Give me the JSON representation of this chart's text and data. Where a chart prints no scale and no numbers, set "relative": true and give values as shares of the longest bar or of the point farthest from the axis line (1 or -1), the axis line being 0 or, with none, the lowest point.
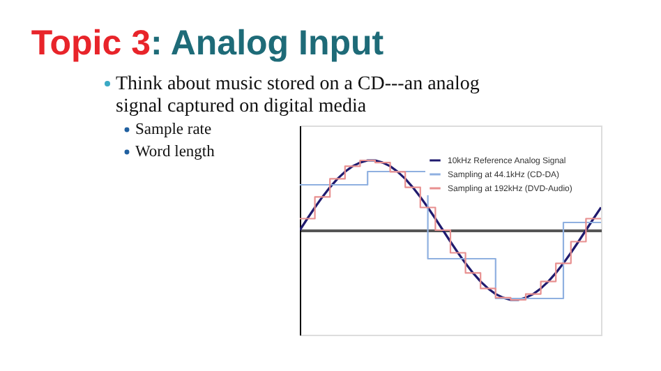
{
  "chart_data": {
    "type": "line",
    "relative": true,
    "title": "Topic 3: Analog Input",
    "annotations": [
      "Think about music stored on a CD---an analog signal captured on digital media",
      "Sample rate",
      "Word length"
    ],
    "categories": [
      null,
      null,
      null,
      null,
      null,
      null,
      null,
      null,
      null,
      null,
      null,
      null,
      null,
      null,
      null,
      null,
      null,
      null,
      null,
      null,
      null,
      null,
      null,
      null,
      null,
      null,
      null,
      null,
      null,
      null,
      null,
      null,
      null,
      null,
      null,
      null,
      null,
      null,
      null,
      null,
      null
    ],
    "tick_labels": false,
    "legend": "top right",
    "series": [
      {
        "name": "10kHz Reference Analog Signal",
        "color": "#1f1a6e",
        "values": [
          0,
          0.165,
          0.325,
          0.476,
          0.614,
          0.736,
          0.837,
          0.916,
          0.969,
          1,
          1,
          0.969,
          0.916,
          0.837,
          0.736,
          0.614,
          0.476,
          0.325,
          0.165,
          0,
          -0.165,
          -0.325,
          -0.476,
          -0.614,
          -0.736,
          -0.837,
          -0.916,
          -0.969,
          -1,
          -1,
          -0.969,
          -0.916,
          -0.837,
          -0.736,
          -0.614,
          -0.476,
          -0.325,
          -0.165,
          0,
          0.165,
          0.325
        ]
      },
      {
        "name": "Sampling at 44.1kHz (CD-DA)",
        "color": "#8fb0e0",
        "type": "step",
        "values": [
          0.65,
          0.65,
          0.65,
          0.65,
          0.65,
          0.65,
          0.65,
          0.65,
          0.65,
          0.84,
          0.84,
          0.84,
          0.84,
          0.84,
          0.84,
          0.84,
          0.84,
          -0.41,
          -0.41,
          -0.41,
          -0.41,
          -0.41,
          -0.41,
          -0.41,
          -0.41,
          -0.41,
          -0.98,
          -0.98,
          -0.98,
          -0.98,
          -0.98,
          -0.98,
          -0.98,
          -0.98,
          -0.98,
          0.11,
          0.11,
          0.11,
          0.11,
          0.11,
          0.11
        ]
      },
      {
        "name": "Sampling at 192kHz (DVD-Audio)",
        "color": "#e89090",
        "type": "step",
        "values": [
          0.165,
          0.165,
          0.476,
          0.476,
          0.736,
          0.736,
          0.916,
          0.916,
          1,
          1,
          0.969,
          0.969,
          0.837,
          0.837,
          0.614,
          0.614,
          0.325,
          0.325,
          0,
          0,
          -0.325,
          -0.325,
          -0.614,
          -0.614,
          -0.837,
          -0.837,
          -0.969,
          -0.969,
          -1,
          -1,
          -0.916,
          -0.916,
          -0.736,
          -0.736,
          -0.476,
          -0.476,
          -0.165,
          -0.165,
          0.165,
          0.165,
          0.165
        ]
      }
    ]
  }
}
